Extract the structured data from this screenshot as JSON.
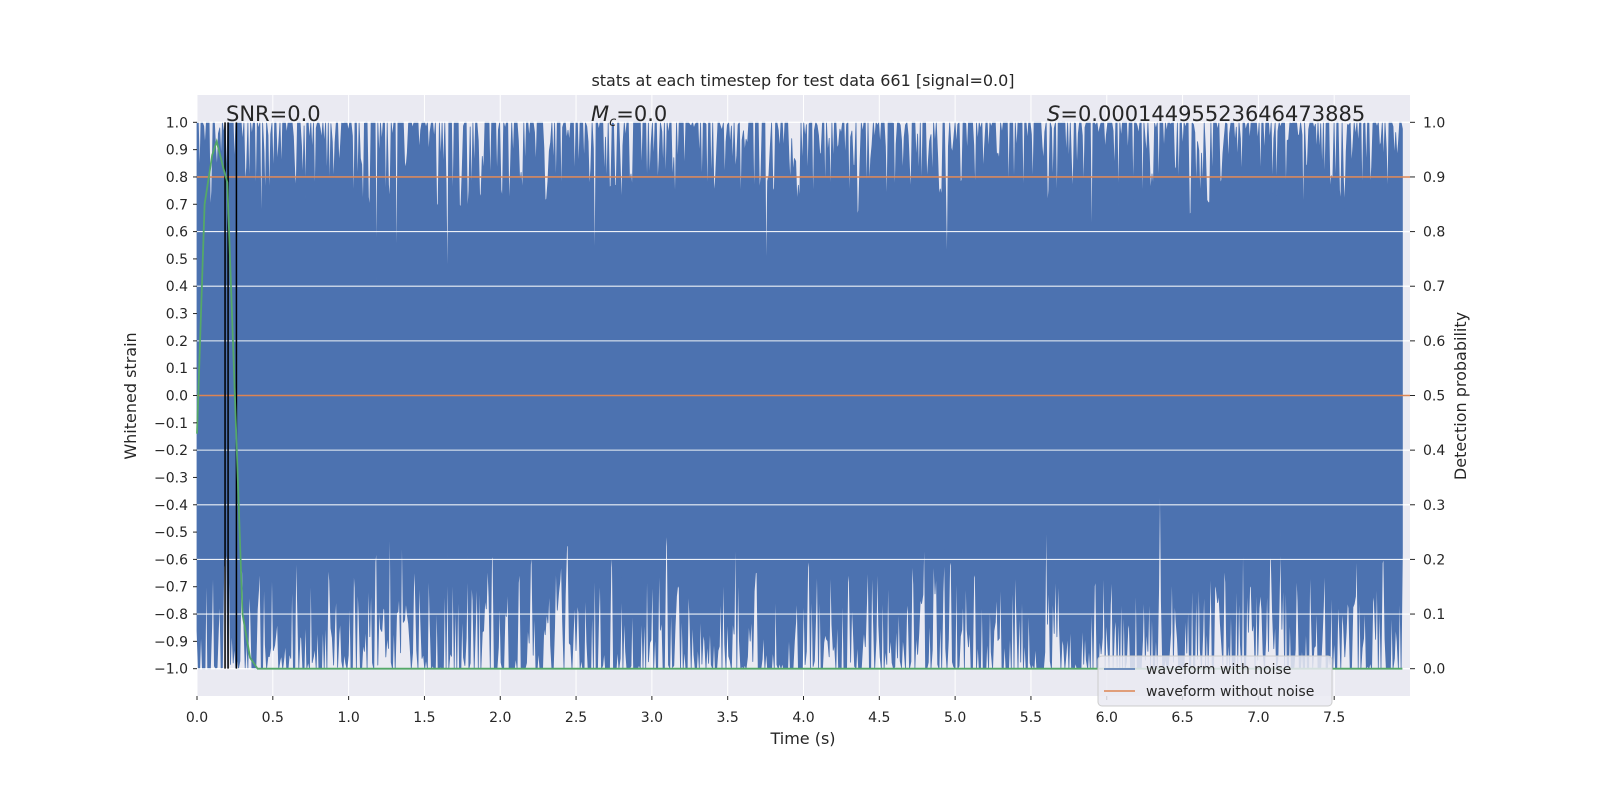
{
  "chart_data": {
    "type": "line",
    "title": "stats at each timestep for test data 661 [signal=0.0]",
    "xlabel": "Time (s)",
    "ylabel": "Whitened strain",
    "y2label": "Detection probability",
    "xlim": [
      0.0,
      8.0
    ],
    "ylim": [
      -1.1,
      1.1
    ],
    "y2lim": [
      -0.05,
      1.05
    ],
    "x_ticks": [
      "0.0",
      "0.5",
      "1.0",
      "1.5",
      "2.0",
      "2.5",
      "3.0",
      "3.5",
      "4.0",
      "4.5",
      "5.0",
      "5.5",
      "6.0",
      "6.5",
      "7.0",
      "7.5"
    ],
    "y_ticks": [
      "1.0",
      "0.9",
      "0.8",
      "0.7",
      "0.6",
      "0.5",
      "0.4",
      "0.3",
      "0.2",
      "0.1",
      "0.0",
      "−0.1",
      "−0.2",
      "−0.3",
      "−0.4",
      "−0.5",
      "−0.6",
      "−0.7",
      "−0.8",
      "−0.9",
      "−1.0"
    ],
    "y2_ticks": [
      "1.0",
      "0.9",
      "0.8",
      "0.7",
      "0.6",
      "0.5",
      "0.4",
      "0.3",
      "0.2",
      "0.1",
      "0.0"
    ],
    "grid": true,
    "legend_position": "lower-right",
    "annotations": {
      "snr": "SNR=0.0",
      "mc_symbol": "M",
      "mc_sub": "c",
      "mc_value": "=0.0",
      "s_symbol": "S",
      "s_value": "=0.00014495523646473885"
    },
    "series": [
      {
        "name": "waveform with noise",
        "color": "#4c72b0",
        "axis": "left",
        "description_values": {
          "range": [
            -1.0,
            1.0
          ],
          "note_points": "dense noise clipped to [-1, 1]"
        }
      },
      {
        "name": "waveform without noise",
        "color": "#dd8452",
        "axis": "left",
        "x": [
          0.0,
          8.0
        ],
        "y": [
          0.0,
          0.0
        ]
      },
      {
        "color": "#55a868",
        "axis": "right",
        "x": [
          0.0,
          0.05,
          0.1,
          0.13,
          0.17,
          0.2,
          0.25,
          0.3,
          0.35,
          0.4,
          1.0,
          2.0,
          3.0,
          4.0,
          5.0,
          6.0,
          7.0,
          7.95
        ],
        "y": [
          0.43,
          0.85,
          0.94,
          0.965,
          0.92,
          0.89,
          0.5,
          0.1,
          0.02,
          0.0,
          0.0,
          0.0,
          0.0,
          0.0,
          0.0,
          0.0,
          0.0,
          0.0
        ]
      },
      {
        "color": "#606060",
        "axis": "right",
        "x": [
          0.8,
          0.8
        ],
        "y": [
          0.9,
          0.9
        ]
      }
    ],
    "vertical_markers": [
      {
        "x": 0.185,
        "color": "#000000"
      },
      {
        "x": 0.205,
        "color": "#000000"
      },
      {
        "x": 0.26,
        "color": "#000000"
      }
    ],
    "noise_dips": [
      {
        "x": 0.42,
        "y": 0.55
      },
      {
        "x": 1.18,
        "y": 0.4
      },
      {
        "x": 1.32,
        "y": 0.37
      },
      {
        "x": 1.65,
        "y": 0.32
      },
      {
        "x": 2.62,
        "y": 0.38
      },
      {
        "x": 3.75,
        "y": 0.36
      },
      {
        "x": 4.95,
        "y": 0.42
      },
      {
        "x": 5.9,
        "y": 0.48
      },
      {
        "x": 7.3,
        "y": 0.6
      }
    ],
    "noise_spikes": [
      {
        "x": 0.65,
        "y": -0.53
      },
      {
        "x": 1.27,
        "y": -0.36
      },
      {
        "x": 1.35,
        "y": -0.43
      },
      {
        "x": 2.45,
        "y": -0.55
      },
      {
        "x": 3.1,
        "y": -0.48
      },
      {
        "x": 3.55,
        "y": -0.42
      },
      {
        "x": 4.8,
        "y": -0.47
      },
      {
        "x": 5.6,
        "y": -0.35
      },
      {
        "x": 6.35,
        "y": -0.22
      },
      {
        "x": 6.9,
        "y": -0.42
      },
      {
        "x": 7.15,
        "y": -0.5
      },
      {
        "x": 7.65,
        "y": -0.53
      }
    ]
  },
  "legend": {
    "items": [
      {
        "label": "waveform with noise",
        "color": "#4c72b0"
      },
      {
        "label": "waveform without noise",
        "color": "#dd8452"
      }
    ]
  },
  "colors": {
    "plot_background": "#eaeaf2",
    "grid": "#ffffff",
    "noise_fill": "#4c72b0",
    "threshold_line": "#dd8452",
    "probability_line": "#55a868"
  }
}
